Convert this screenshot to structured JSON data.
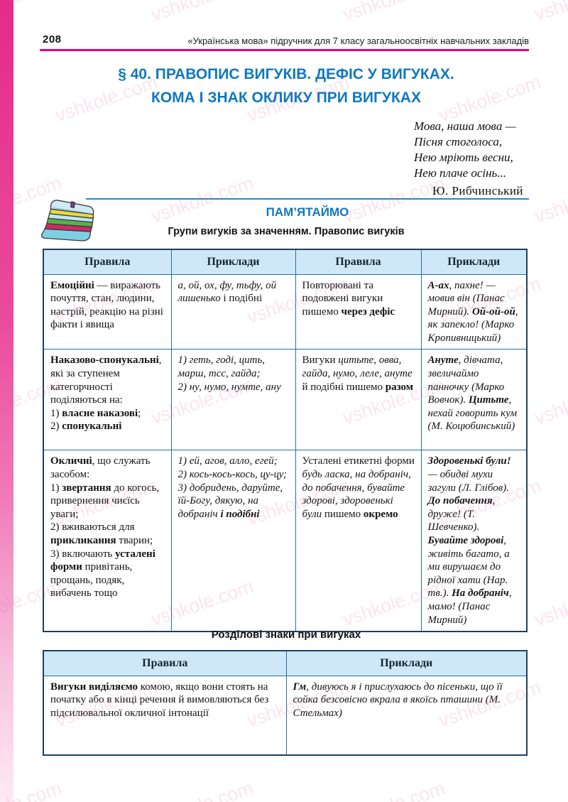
{
  "watermark": {
    "text": "vshkole.com"
  },
  "header": {
    "page_number": "208",
    "book_title": "«Українська мова» підручник для 7 класу загальноосвітніх навчальних закладів"
  },
  "title": {
    "line1": "§ 40. ПРАВОПИС ВИГУКІВ. ДЕФІС У ВИГУКАХ.",
    "line2": "КОМА І ЗНАК ОКЛИКУ ПРИ ВИГУКАХ"
  },
  "epigraph": {
    "lines": [
      "Мова, наша мова —",
      "Пісня стоголоса,",
      "Нею мріють весни,",
      "Нею плаче осінь..."
    ],
    "author": "Ю. Рибчинський"
  },
  "memo": {
    "heading": "ПАМ’ЯТАЙМО",
    "subtitle": "Групи вигуків за значенням. Правопис вигуків",
    "icon": "books-stack-icon"
  },
  "colors": {
    "accent_magenta": "#e2007f",
    "accent_blue": "#0f78c0",
    "table_header_bg": "#cfe8f7",
    "table_border": "#2a6da4"
  },
  "interjections_table": {
    "headers": [
      "Правила",
      "Приклади",
      "Правила",
      "Приклади"
    ],
    "rows": [
      {
        "cells": [
          "<b>Емоційні</b> — виражають почуття, стан, людини, настрій, реакцію на різні факти і явища",
          "<i>а, ой, ох, фу, тьфу, ой лишенько</i> і подібні",
          "Повторювані та подовжені вигуки пишемо <b>через дефіс</b>",
          "<i><b>А-ах</b>, пахне! — мовив він (Панас Мирний). <b>Ой-ой-ой</b>, як запекло! (Марко Кропивницький)</i>"
        ]
      },
      {
        "cells": [
          "<b>Наказово-спонукальні</b>, які за ступенем категорчності поділяються на:<br>1) <b>власне наказові</b>;<br>2) <b>спонукальні</b>",
          "<i>1) геть, годі, цить, марш, тсс, гайда;<br>2) ну, нумо, нумте, ану</i>",
          "Вигуки <i>цитьте, овва, гайда, нумо, леле, ануте</i> й подібні пишемо <b>разом</b>",
          "<i><b>Ануте</b>, дівчата, звеличаймо панночку (Марко Вовчок). <b>Цитьте</b>, нехай говорить кум (М. Коцюбинський)</i>"
        ]
      },
      {
        "cells": [
          "<b>Окличні</b>, що служать засобом:<br>1) <b>звертання</b> до когось, привернення чиєїсь уваги;<br>2) вживаються для <b>прикликання</b> тварин;<br>3) включають <b>усталені форми</b> привітань, прощань, подяк, вибачень тощо",
          "<i>1) ей, агов, алло, егей;<br>2) кось-кось-кось, цу-цу;<br>3) добридень, даруйте, їй-Богу, дякую, на добраніч <b>і подібні</b></i>",
          "Усталені етикетні форми <i>будь ласка, на добраніч, до побачення, бувайте здорові, здоровенькі були</i> пишемо <b>окремо</b>",
          "<i><b>Здоровенькі були!</b> — обидві мухи загули (Л. Глібов). <b>До побачення</b>, друже! (Т. Шевченко). <b>Бувайте здорові</b>, живіть багато, а ми вирушаєм до рідної хати (Нар. тв.). <b>На добраніч</b>, мамо! (Панас Мирний)</i>"
        ]
      }
    ]
  },
  "punctuation_section": {
    "heading": "Розділові знаки при вигуках",
    "table": {
      "headers": [
        "Правила",
        "Приклади"
      ],
      "rows": [
        {
          "cells": [
            "<b>Вигуки виділяємо</b> комою, якщо вони стоять на початку або в кінці речення й вимовляються без підсилювальної окличної інтонації",
            "<i><b>Гм</b>, дивуюсь я і прислухаюсь до пісеньки, що її сойка безсовісно вкрала в якоїсь пташини (М. Стельмах)</i>"
          ]
        }
      ]
    }
  }
}
